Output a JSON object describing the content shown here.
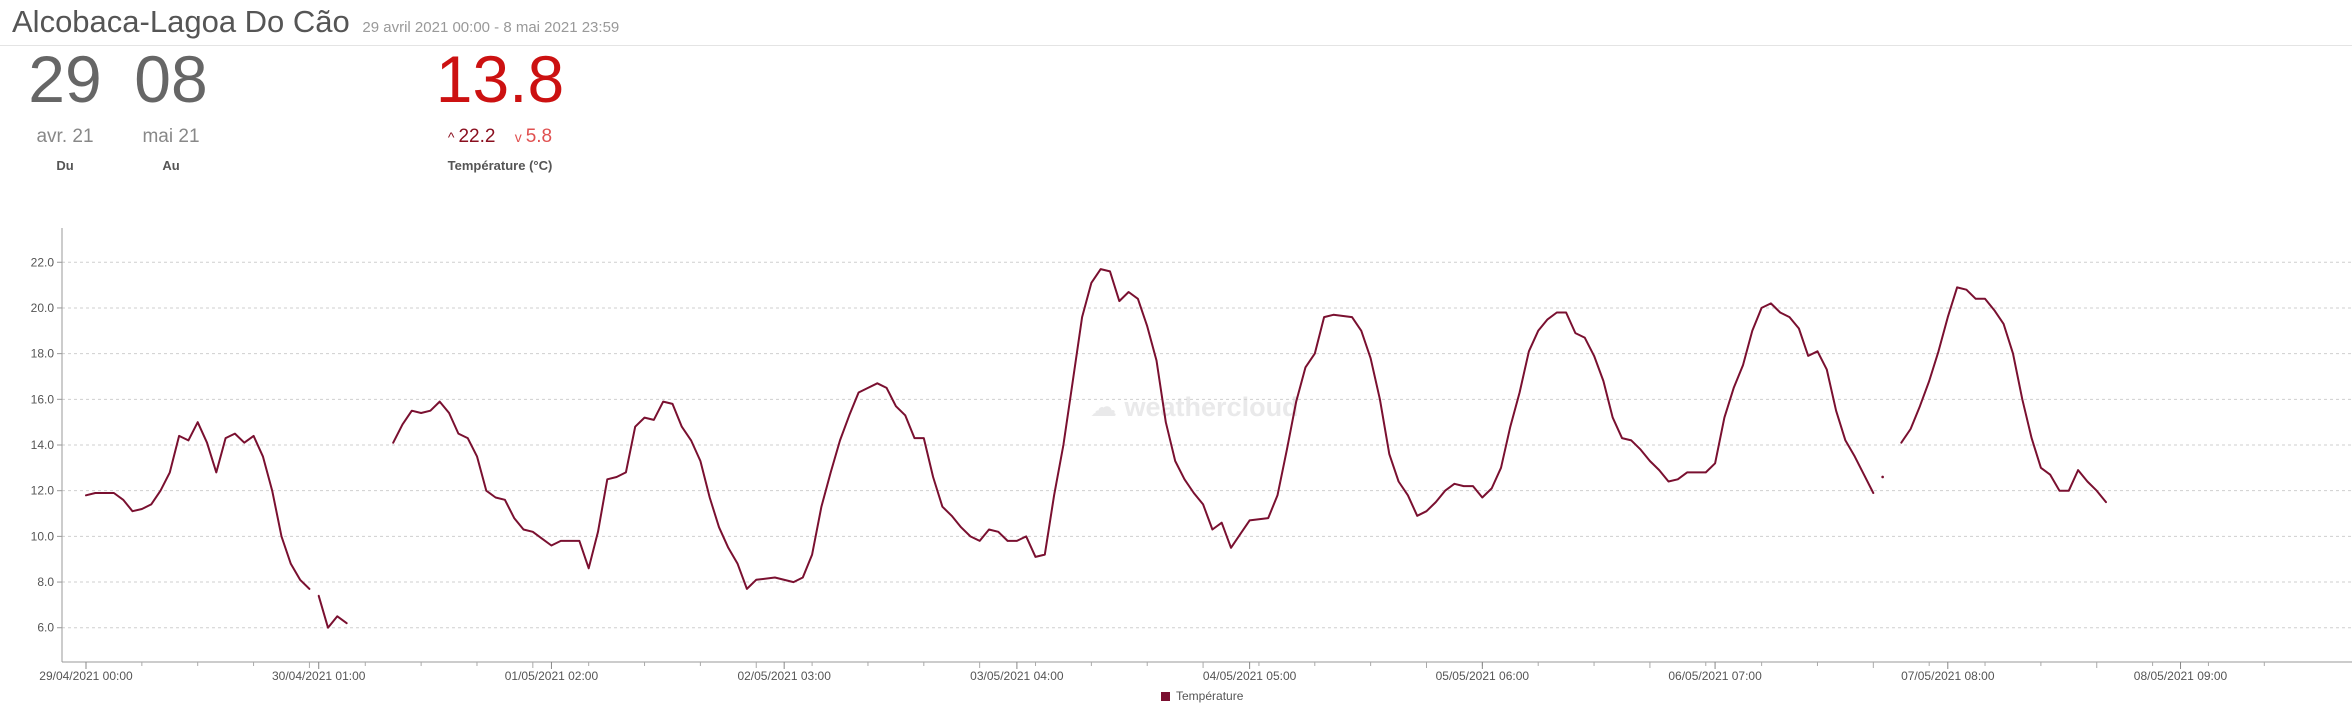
{
  "header": {
    "station": "Alcobaca-Lagoa Do Cão",
    "range": "29 avril 2021 00:00 - 8 mai 2021 23:59"
  },
  "summary": {
    "from_day": "29",
    "from_month": "avr. 21",
    "from_label": "Du",
    "to_day": "08",
    "to_month": "mai 21",
    "to_label": "Au",
    "temp_current": "13.8",
    "temp_max": "22.2",
    "temp_min": "5.8",
    "temp_label": "Température (°C)"
  },
  "watermark": {
    "text": "weathercloud"
  },
  "colors": {
    "line": "#7a1030",
    "current": "#cc1111",
    "max": "#8a0f1f",
    "min": "#e05050"
  },
  "chart_data": {
    "type": "line",
    "ylabel": "",
    "ylim": [
      4.5,
      23.5
    ],
    "y_ticks": [
      "6.0",
      "8.0",
      "10.0",
      "12.0",
      "14.0",
      "16.0",
      "18.0",
      "20.0",
      "22.0"
    ],
    "x_range": [
      "29/04/2021 00:00",
      "08/05/2021 23:59"
    ],
    "x_ticks": [
      "29/04/2021 00:00",
      "30/04/2021 01:00",
      "01/05/2021 02:00",
      "02/05/2021 03:00",
      "03/05/2021 04:00",
      "04/05/2021 05:00",
      "05/05/2021 06:00",
      "06/05/2021 07:00",
      "07/05/2021 08:00",
      "08/05/2021 09:00"
    ],
    "legend": "bottom-center",
    "grid": "horizontal dashed",
    "series": [
      {
        "name": "Température",
        "segments": [
          [
            [
              "29/04/2021 00:00",
              11.8
            ],
            [
              "29/04/2021 01:00",
              11.9
            ],
            [
              "29/04/2021 03:00",
              11.9
            ],
            [
              "29/04/2021 04:00",
              11.6
            ],
            [
              "29/04/2021 05:00",
              11.1
            ],
            [
              "29/04/2021 06:00",
              11.2
            ],
            [
              "29/04/2021 07:00",
              11.4
            ],
            [
              "29/04/2021 08:00",
              12.0
            ],
            [
              "29/04/2021 09:00",
              12.8
            ],
            [
              "29/04/2021 10:00",
              14.4
            ],
            [
              "29/04/2021 11:00",
              14.2
            ],
            [
              "29/04/2021 12:00",
              15.0
            ],
            [
              "29/04/2021 13:00",
              14.1
            ],
            [
              "29/04/2021 14:00",
              12.8
            ],
            [
              "29/04/2021 15:00",
              14.3
            ],
            [
              "29/04/2021 16:00",
              14.5
            ],
            [
              "29/04/2021 17:00",
              14.1
            ],
            [
              "29/04/2021 18:00",
              14.4
            ],
            [
              "29/04/2021 19:00",
              13.5
            ],
            [
              "29/04/2021 20:00",
              12.0
            ],
            [
              "29/04/2021 21:00",
              10.0
            ],
            [
              "29/04/2021 22:00",
              8.8
            ],
            [
              "29/04/2021 23:00",
              8.1
            ],
            [
              "30/04/2021 00:00",
              7.7
            ]
          ],
          [
            [
              "30/04/2021 01:00",
              7.4
            ],
            [
              "30/04/2021 02:00",
              6.0
            ],
            [
              "30/04/2021 03:00",
              6.5
            ],
            [
              "30/04/2021 04:00",
              6.2
            ]
          ],
          [
            [
              "30/04/2021 09:00",
              14.1
            ],
            [
              "30/04/2021 10:00",
              14.9
            ],
            [
              "30/04/2021 11:00",
              15.5
            ],
            [
              "30/04/2021 12:00",
              15.4
            ],
            [
              "30/04/2021 13:00",
              15.5
            ],
            [
              "30/04/2021 14:00",
              15.9
            ],
            [
              "30/04/2021 15:00",
              15.4
            ],
            [
              "30/04/2021 16:00",
              14.5
            ],
            [
              "30/04/2021 17:00",
              14.3
            ],
            [
              "30/04/2021 18:00",
              13.5
            ],
            [
              "30/04/2021 19:00",
              12.0
            ],
            [
              "30/04/2021 20:00",
              11.7
            ],
            [
              "30/04/2021 21:00",
              11.6
            ],
            [
              "30/04/2021 22:00",
              10.8
            ],
            [
              "30/04/2021 23:00",
              10.3
            ],
            [
              "01/05/2021 00:00",
              10.2
            ],
            [
              "01/05/2021 01:00",
              9.9
            ],
            [
              "01/05/2021 02:00",
              9.6
            ],
            [
              "01/05/2021 03:00",
              9.8
            ],
            [
              "01/05/2021 04:00",
              9.8
            ],
            [
              "01/05/2021 05:00",
              9.8
            ],
            [
              "01/05/2021 06:00",
              8.6
            ],
            [
              "01/05/2021 07:00",
              10.2
            ],
            [
              "01/05/2021 08:00",
              12.5
            ],
            [
              "01/05/2021 09:00",
              12.6
            ],
            [
              "01/05/2021 10:00",
              12.8
            ],
            [
              "01/05/2021 11:00",
              14.8
            ],
            [
              "01/05/2021 12:00",
              15.2
            ],
            [
              "01/05/2021 13:00",
              15.1
            ],
            [
              "01/05/2021 14:00",
              15.9
            ],
            [
              "01/05/2021 15:00",
              15.8
            ],
            [
              "01/05/2021 16:00",
              14.8
            ],
            [
              "01/05/2021 17:00",
              14.2
            ],
            [
              "01/05/2021 18:00",
              13.3
            ],
            [
              "01/05/2021 19:00",
              11.7
            ],
            [
              "01/05/2021 20:00",
              10.4
            ],
            [
              "01/05/2021 21:00",
              9.5
            ],
            [
              "01/05/2021 22:00",
              8.8
            ],
            [
              "01/05/2021 23:00",
              7.7
            ],
            [
              "02/05/2021 00:00",
              8.1
            ],
            [
              "02/05/2021 02:00",
              8.2
            ],
            [
              "02/05/2021 04:00",
              8.0
            ],
            [
              "02/05/2021 05:00",
              8.2
            ],
            [
              "02/05/2021 06:00",
              9.2
            ],
            [
              "02/05/2021 07:00",
              11.3
            ],
            [
              "02/05/2021 08:00",
              12.8
            ],
            [
              "02/05/2021 09:00",
              14.2
            ],
            [
              "02/05/2021 10:00",
              15.3
            ],
            [
              "02/05/2021 11:00",
              16.3
            ],
            [
              "02/05/2021 12:00",
              16.5
            ],
            [
              "02/05/2021 13:00",
              16.7
            ],
            [
              "02/05/2021 14:00",
              16.5
            ],
            [
              "02/05/2021 15:00",
              15.7
            ],
            [
              "02/05/2021 16:00",
              15.3
            ],
            [
              "02/05/2021 17:00",
              14.3
            ],
            [
              "02/05/2021 18:00",
              14.3
            ],
            [
              "02/05/2021 19:00",
              12.6
            ],
            [
              "02/05/2021 20:00",
              11.3
            ],
            [
              "02/05/2021 21:00",
              10.9
            ],
            [
              "02/05/2021 22:00",
              10.4
            ],
            [
              "02/05/2021 23:00",
              10.0
            ],
            [
              "03/05/2021 00:00",
              9.8
            ],
            [
              "03/05/2021 01:00",
              10.3
            ],
            [
              "03/05/2021 02:00",
              10.2
            ],
            [
              "03/05/2021 03:00",
              9.8
            ],
            [
              "03/05/2021 04:00",
              9.8
            ],
            [
              "03/05/2021 05:00",
              10.0
            ],
            [
              "03/05/2021 06:00",
              9.1
            ],
            [
              "03/05/2021 07:00",
              9.2
            ],
            [
              "03/05/2021 08:00",
              11.8
            ],
            [
              "03/05/2021 09:00",
              14.0
            ],
            [
              "03/05/2021 10:00",
              16.8
            ],
            [
              "03/05/2021 11:00",
              19.6
            ],
            [
              "03/05/2021 12:00",
              21.1
            ],
            [
              "03/05/2021 13:00",
              21.7
            ],
            [
              "03/05/2021 14:00",
              21.6
            ],
            [
              "03/05/2021 15:00",
              20.3
            ],
            [
              "03/05/2021 16:00",
              20.7
            ],
            [
              "03/05/2021 17:00",
              20.4
            ],
            [
              "03/05/2021 18:00",
              19.2
            ],
            [
              "03/05/2021 19:00",
              17.7
            ],
            [
              "03/05/2021 20:00",
              15.0
            ],
            [
              "03/05/2021 21:00",
              13.3
            ],
            [
              "03/05/2021 22:00",
              12.5
            ],
            [
              "03/05/2021 23:00",
              11.9
            ],
            [
              "04/05/2021 00:00",
              11.4
            ],
            [
              "04/05/2021 01:00",
              10.3
            ],
            [
              "04/05/2021 02:00",
              10.6
            ],
            [
              "04/05/2021 03:00",
              9.5
            ],
            [
              "04/05/2021 04:00",
              10.1
            ],
            [
              "04/05/2021 05:00",
              10.7
            ],
            [
              "04/05/2021 07:00",
              10.8
            ],
            [
              "04/05/2021 08:00",
              11.8
            ],
            [
              "04/05/2021 09:00",
              13.8
            ],
            [
              "04/05/2021 10:00",
              15.9
            ],
            [
              "04/05/2021 11:00",
              17.4
            ],
            [
              "04/05/2021 12:00",
              18.0
            ],
            [
              "04/05/2021 13:00",
              19.6
            ],
            [
              "04/05/2021 14:00",
              19.7
            ],
            [
              "04/05/2021 16:00",
              19.6
            ],
            [
              "04/05/2021 17:00",
              19.0
            ],
            [
              "04/05/2021 18:00",
              17.8
            ],
            [
              "04/05/2021 19:00",
              16.0
            ],
            [
              "04/05/2021 20:00",
              13.6
            ],
            [
              "04/05/2021 21:00",
              12.4
            ],
            [
              "04/05/2021 22:00",
              11.8
            ],
            [
              "04/05/2021 23:00",
              10.9
            ],
            [
              "05/05/2021 00:00",
              11.1
            ],
            [
              "05/05/2021 01:00",
              11.5
            ],
            [
              "05/05/2021 02:00",
              12.0
            ],
            [
              "05/05/2021 03:00",
              12.3
            ],
            [
              "05/05/2021 04:00",
              12.2
            ],
            [
              "05/05/2021 05:00",
              12.2
            ],
            [
              "05/05/2021 06:00",
              11.7
            ],
            [
              "05/05/2021 07:00",
              12.1
            ],
            [
              "05/05/2021 08:00",
              13.0
            ],
            [
              "05/05/2021 09:00",
              14.8
            ],
            [
              "05/05/2021 10:00",
              16.3
            ],
            [
              "05/05/2021 11:00",
              18.1
            ],
            [
              "05/05/2021 12:00",
              19.0
            ],
            [
              "05/05/2021 13:00",
              19.5
            ],
            [
              "05/05/2021 14:00",
              19.8
            ],
            [
              "05/05/2021 15:00",
              19.8
            ],
            [
              "05/05/2021 16:00",
              18.9
            ],
            [
              "05/05/2021 17:00",
              18.7
            ],
            [
              "05/05/2021 18:00",
              17.9
            ],
            [
              "05/05/2021 19:00",
              16.8
            ],
            [
              "05/05/2021 20:00",
              15.2
            ],
            [
              "05/05/2021 21:00",
              14.3
            ],
            [
              "05/05/2021 22:00",
              14.2
            ],
            [
              "05/05/2021 23:00",
              13.8
            ],
            [
              "06/05/2021 00:00",
              13.3
            ],
            [
              "06/05/2021 01:00",
              12.9
            ],
            [
              "06/05/2021 02:00",
              12.4
            ],
            [
              "06/05/2021 03:00",
              12.5
            ],
            [
              "06/05/2021 04:00",
              12.8
            ],
            [
              "06/05/2021 06:00",
              12.8
            ],
            [
              "06/05/2021 07:00",
              13.2
            ],
            [
              "06/05/2021 08:00",
              15.2
            ],
            [
              "06/05/2021 09:00",
              16.5
            ],
            [
              "06/05/2021 10:00",
              17.5
            ],
            [
              "06/05/2021 11:00",
              19.0
            ],
            [
              "06/05/2021 12:00",
              20.0
            ],
            [
              "06/05/2021 13:00",
              20.2
            ],
            [
              "06/05/2021 14:00",
              19.8
            ],
            [
              "06/05/2021 15:00",
              19.6
            ],
            [
              "06/05/2021 16:00",
              19.1
            ],
            [
              "06/05/2021 17:00",
              17.9
            ],
            [
              "06/05/2021 18:00",
              18.1
            ],
            [
              "06/05/2021 19:00",
              17.3
            ],
            [
              "06/05/2021 20:00",
              15.5
            ],
            [
              "06/05/2021 21:00",
              14.2
            ],
            [
              "06/05/2021 22:00",
              13.5
            ],
            [
              "06/05/2021 23:00",
              12.7
            ],
            [
              "07/05/2021 00:00",
              11.9
            ]
          ],
          [
            [
              "07/05/2021 01:00",
              12.6
            ]
          ],
          [
            [
              "07/05/2021 03:00",
              14.1
            ],
            [
              "07/05/2021 04:00",
              14.7
            ],
            [
              "07/05/2021 05:00",
              15.7
            ],
            [
              "07/05/2021 06:00",
              16.8
            ],
            [
              "07/05/2021 07:00",
              18.1
            ],
            [
              "07/05/2021 08:00",
              19.6
            ],
            [
              "07/05/2021 09:00",
              20.9
            ],
            [
              "07/05/2021 10:00",
              20.8
            ],
            [
              "07/05/2021 11:00",
              20.4
            ],
            [
              "07/05/2021 12:00",
              20.4
            ],
            [
              "07/05/2021 13:00",
              19.9
            ],
            [
              "07/05/2021 14:00",
              19.3
            ],
            [
              "07/05/2021 15:00",
              18.0
            ],
            [
              "07/05/2021 16:00",
              16.0
            ],
            [
              "07/05/2021 17:00",
              14.3
            ],
            [
              "07/05/2021 18:00",
              13.0
            ],
            [
              "07/05/2021 19:00",
              12.7
            ],
            [
              "07/05/2021 20:00",
              12.0
            ],
            [
              "07/05/2021 21:00",
              12.0
            ],
            [
              "07/05/2021 22:00",
              12.9
            ],
            [
              "07/05/2021 23:00",
              12.4
            ],
            [
              "08/05/2021 00:00",
              12.0
            ],
            [
              "08/05/2021 01:00",
              11.5
            ]
          ]
        ]
      }
    ]
  }
}
